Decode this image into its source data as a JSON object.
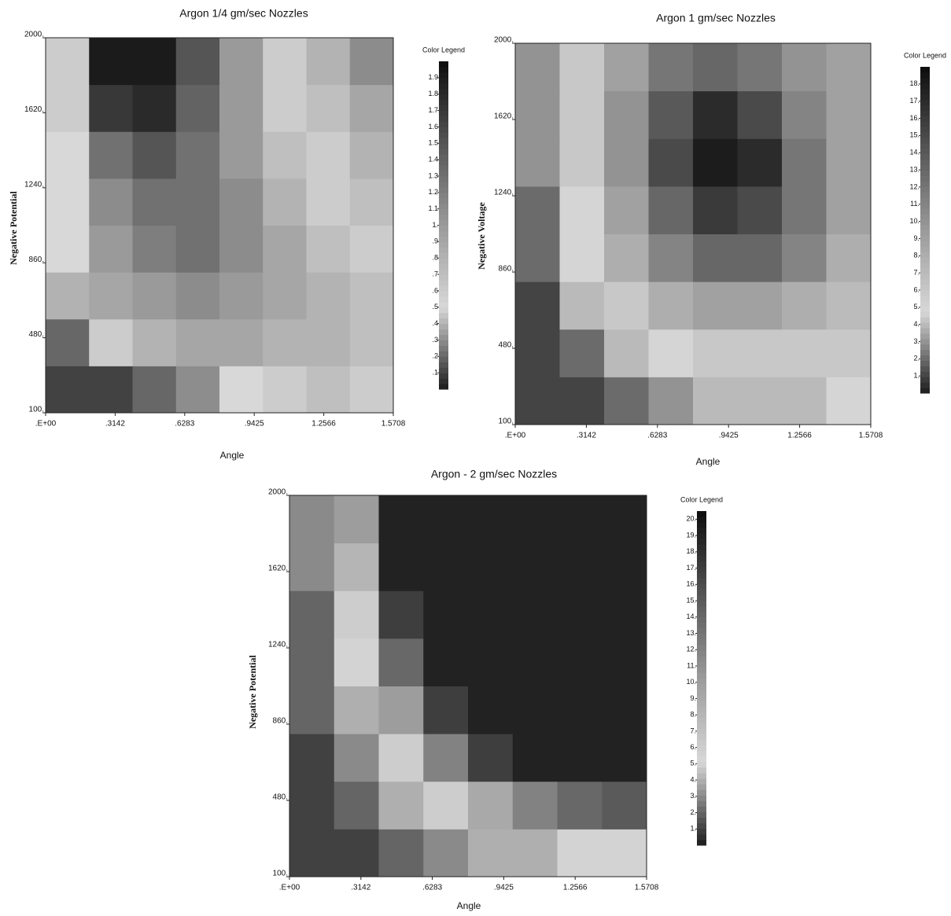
{
  "chart_data": [
    {
      "type": "heatmap",
      "title": "Argon 1/4 gm/sec Nozzles",
      "xlabel": "Angle",
      "ylabel": "Negative Potential",
      "xlim": [
        0,
        1.5708
      ],
      "ylim": [
        100,
        2000
      ],
      "xticks": [
        {
          "value": 0,
          "label": ".E+00"
        },
        {
          "value": 0.3142,
          "label": ".3142"
        },
        {
          "value": 0.6283,
          "label": ".6283"
        },
        {
          "value": 0.9425,
          "label": ".9425"
        },
        {
          "value": 1.2566,
          "label": "1.2566"
        },
        {
          "value": 1.5708,
          "label": "1.5708"
        }
      ],
      "yticks": [
        {
          "value": 100,
          "label": "100."
        },
        {
          "value": 480,
          "label": "480."
        },
        {
          "value": 860,
          "label": "860."
        },
        {
          "value": 1240,
          "label": "1240."
        },
        {
          "value": 1620,
          "label": "1620."
        },
        {
          "value": 2000,
          "label": "2000."
        }
      ],
      "zlim": [
        0,
        2
      ],
      "colormap": [
        "#1c1c1c",
        "#d8d8d8",
        "#9a9a9a",
        "#555555",
        "#0d0d0d"
      ],
      "z": [
        [
          0.1,
          0.1,
          0.2,
          0.3,
          0.5,
          0.6,
          0.7,
          0.6
        ],
        [
          0.2,
          0.6,
          0.8,
          0.9,
          0.9,
          0.8,
          0.8,
          0.7
        ],
        [
          0.4,
          0.9,
          1.0,
          1.1,
          1.0,
          0.9,
          0.8,
          0.7
        ],
        [
          0.5,
          1.0,
          1.2,
          1.3,
          1.1,
          0.9,
          0.7,
          0.6
        ],
        [
          0.5,
          1.1,
          1.3,
          1.3,
          1.1,
          0.8,
          0.6,
          0.7
        ],
        [
          0.5,
          1.3,
          1.5,
          1.3,
          1.0,
          0.7,
          0.6,
          0.8
        ],
        [
          0.6,
          1.7,
          1.8,
          1.4,
          1.0,
          0.6,
          0.7,
          0.9
        ],
        [
          0.6,
          1.9,
          1.9,
          1.5,
          1.0,
          0.6,
          0.8,
          1.1
        ]
      ],
      "colorbar": {
        "label": "Color Legend",
        "ticks": [
          {
            "value": 0.1,
            "label": ".1"
          },
          {
            "value": 0.2,
            "label": ".2"
          },
          {
            "value": 0.3,
            "label": ".3"
          },
          {
            "value": 0.4,
            "label": ".4"
          },
          {
            "value": 0.5,
            "label": ".5"
          },
          {
            "value": 0.6,
            "label": ".6"
          },
          {
            "value": 0.7,
            "label": ".7"
          },
          {
            "value": 0.8,
            "label": ".8"
          },
          {
            "value": 0.9,
            "label": ".9"
          },
          {
            "value": 1,
            "label": "1."
          },
          1.1,
          1.2,
          1.3,
          1.4,
          1.5,
          1.6,
          1.7,
          1.8,
          1.9
        ]
      }
    },
    {
      "type": "heatmap",
      "title": "Argon 1 gm/sec Nozzles",
      "xlabel": "Angle",
      "ylabel": "Negative Voltage",
      "xlim": [
        0,
        1.5708
      ],
      "ylim": [
        100,
        2000
      ],
      "xticks": [
        {
          "value": 0,
          "label": ".E+00"
        },
        {
          "value": 0.3142,
          "label": ".3142"
        },
        {
          "value": 0.6283,
          "label": ".6283"
        },
        {
          "value": 0.9425,
          "label": ".9425"
        },
        {
          "value": 1.2566,
          "label": "1.2566"
        },
        {
          "value": 1.5708,
          "label": "1.5708"
        }
      ],
      "yticks": [
        {
          "value": 100,
          "label": "100."
        },
        {
          "value": 480,
          "label": "480."
        },
        {
          "value": 860,
          "label": "860."
        },
        {
          "value": 1240,
          "label": "1240."
        },
        {
          "value": 1620,
          "label": "1620."
        },
        {
          "value": 2000,
          "label": "2000."
        }
      ],
      "zlim": [
        0,
        19
      ],
      "colormap": [
        "#1c1c1c",
        "#d8d8d8",
        "#9a9a9a",
        "#555555",
        "#0d0d0d"
      ],
      "z": [
        [
          1,
          1,
          2,
          3,
          4,
          4,
          4,
          5
        ],
        [
          1,
          2,
          4,
          5,
          6,
          6,
          6,
          6
        ],
        [
          1,
          4,
          6,
          8,
          9,
          9,
          8,
          7
        ],
        [
          2,
          5,
          8,
          11,
          13,
          13,
          11,
          8
        ],
        [
          2,
          5,
          9,
          13,
          16,
          15,
          12,
          9
        ],
        [
          3,
          6,
          10,
          15,
          18,
          17,
          12,
          9
        ],
        [
          3,
          6,
          10,
          14,
          17,
          15,
          11,
          9
        ],
        [
          3,
          6,
          9,
          12,
          13,
          12,
          10,
          9
        ]
      ],
      "colorbar": {
        "label": "Color Legend",
        "ticks": [
          {
            "value": 1,
            "label": "1."
          },
          {
            "value": 2,
            "label": "2."
          },
          {
            "value": 3,
            "label": "3."
          },
          {
            "value": 4,
            "label": "4."
          },
          {
            "value": 5,
            "label": "5."
          },
          {
            "value": 6,
            "label": "6."
          },
          {
            "value": 7,
            "label": "7."
          },
          {
            "value": 8,
            "label": "8."
          },
          {
            "value": 9,
            "label": "9."
          },
          {
            "value": 10,
            "label": "10."
          },
          {
            "value": 11,
            "label": "11."
          },
          {
            "value": 12,
            "label": "12."
          },
          {
            "value": 13,
            "label": "13."
          },
          {
            "value": 14,
            "label": "14."
          },
          {
            "value": 15,
            "label": "15."
          },
          {
            "value": 16,
            "label": "16."
          },
          {
            "value": 17,
            "label": "17."
          },
          {
            "value": 18,
            "label": "18."
          }
        ]
      }
    },
    {
      "type": "heatmap",
      "title": "Argon - 2 gm/sec Nozzles",
      "xlabel": "Angle",
      "ylabel": "Negative Potential",
      "xlim": [
        0,
        1.5708
      ],
      "ylim": [
        100,
        2000
      ],
      "xticks": [
        {
          "value": 0,
          "label": ".E+00"
        },
        {
          "value": 0.3142,
          "label": ".3142"
        },
        {
          "value": 0.6283,
          "label": ".6283"
        },
        {
          "value": 0.9425,
          "label": ".9425"
        },
        {
          "value": 1.2566,
          "label": "1.2566"
        },
        {
          "value": 1.5708,
          "label": "1.5708"
        }
      ],
      "yticks": [
        {
          "value": 100,
          "label": "100."
        },
        {
          "value": 480,
          "label": "480."
        },
        {
          "value": 860,
          "label": "860."
        },
        {
          "value": 1240,
          "label": "1240."
        },
        {
          "value": 1620,
          "label": "1620."
        },
        {
          "value": 2000,
          "label": "2000."
        }
      ],
      "zlim": [
        0,
        20.5
      ],
      "colormap": [
        "#1c1c1c",
        "#d8d8d8",
        "#9a9a9a",
        "#555555",
        "#0d0d0d"
      ],
      "z": [
        [
          1,
          1,
          2,
          3,
          4,
          4,
          5,
          5
        ],
        [
          1,
          2,
          4,
          6,
          9,
          12,
          14,
          15
        ],
        [
          1,
          3,
          6,
          12,
          17,
          19,
          19,
          19
        ],
        [
          2,
          4,
          10,
          17,
          19,
          19,
          19,
          19
        ],
        [
          2,
          5,
          14,
          19,
          19,
          19,
          19,
          19
        ],
        [
          2,
          6,
          17,
          19,
          19,
          19,
          19,
          19
        ],
        [
          3,
          8,
          19,
          19,
          19,
          19,
          19,
          19
        ],
        [
          3,
          10,
          19,
          19,
          19,
          19,
          19,
          19
        ]
      ],
      "colorbar": {
        "label": "Color Legend",
        "ticks": [
          {
            "value": 1,
            "label": "1."
          },
          {
            "value": 2,
            "label": "2."
          },
          {
            "value": 3,
            "label": "3."
          },
          {
            "value": 4,
            "label": "4."
          },
          {
            "value": 5,
            "label": "5."
          },
          {
            "value": 6,
            "label": "6."
          },
          {
            "value": 7,
            "label": "7."
          },
          {
            "value": 8,
            "label": "8."
          },
          {
            "value": 9,
            "label": "9."
          },
          {
            "value": 10,
            "label": "10."
          },
          {
            "value": 11,
            "label": "11."
          },
          {
            "value": 12,
            "label": "12."
          },
          {
            "value": 13,
            "label": "13."
          },
          {
            "value": 14,
            "label": "14."
          },
          {
            "value": 15,
            "label": "15."
          },
          {
            "value": 16,
            "label": "16."
          },
          {
            "value": 17,
            "label": "17."
          },
          {
            "value": 18,
            "label": "18."
          },
          {
            "value": 19,
            "label": "19."
          },
          {
            "value": 20,
            "label": "20."
          }
        ]
      }
    }
  ]
}
